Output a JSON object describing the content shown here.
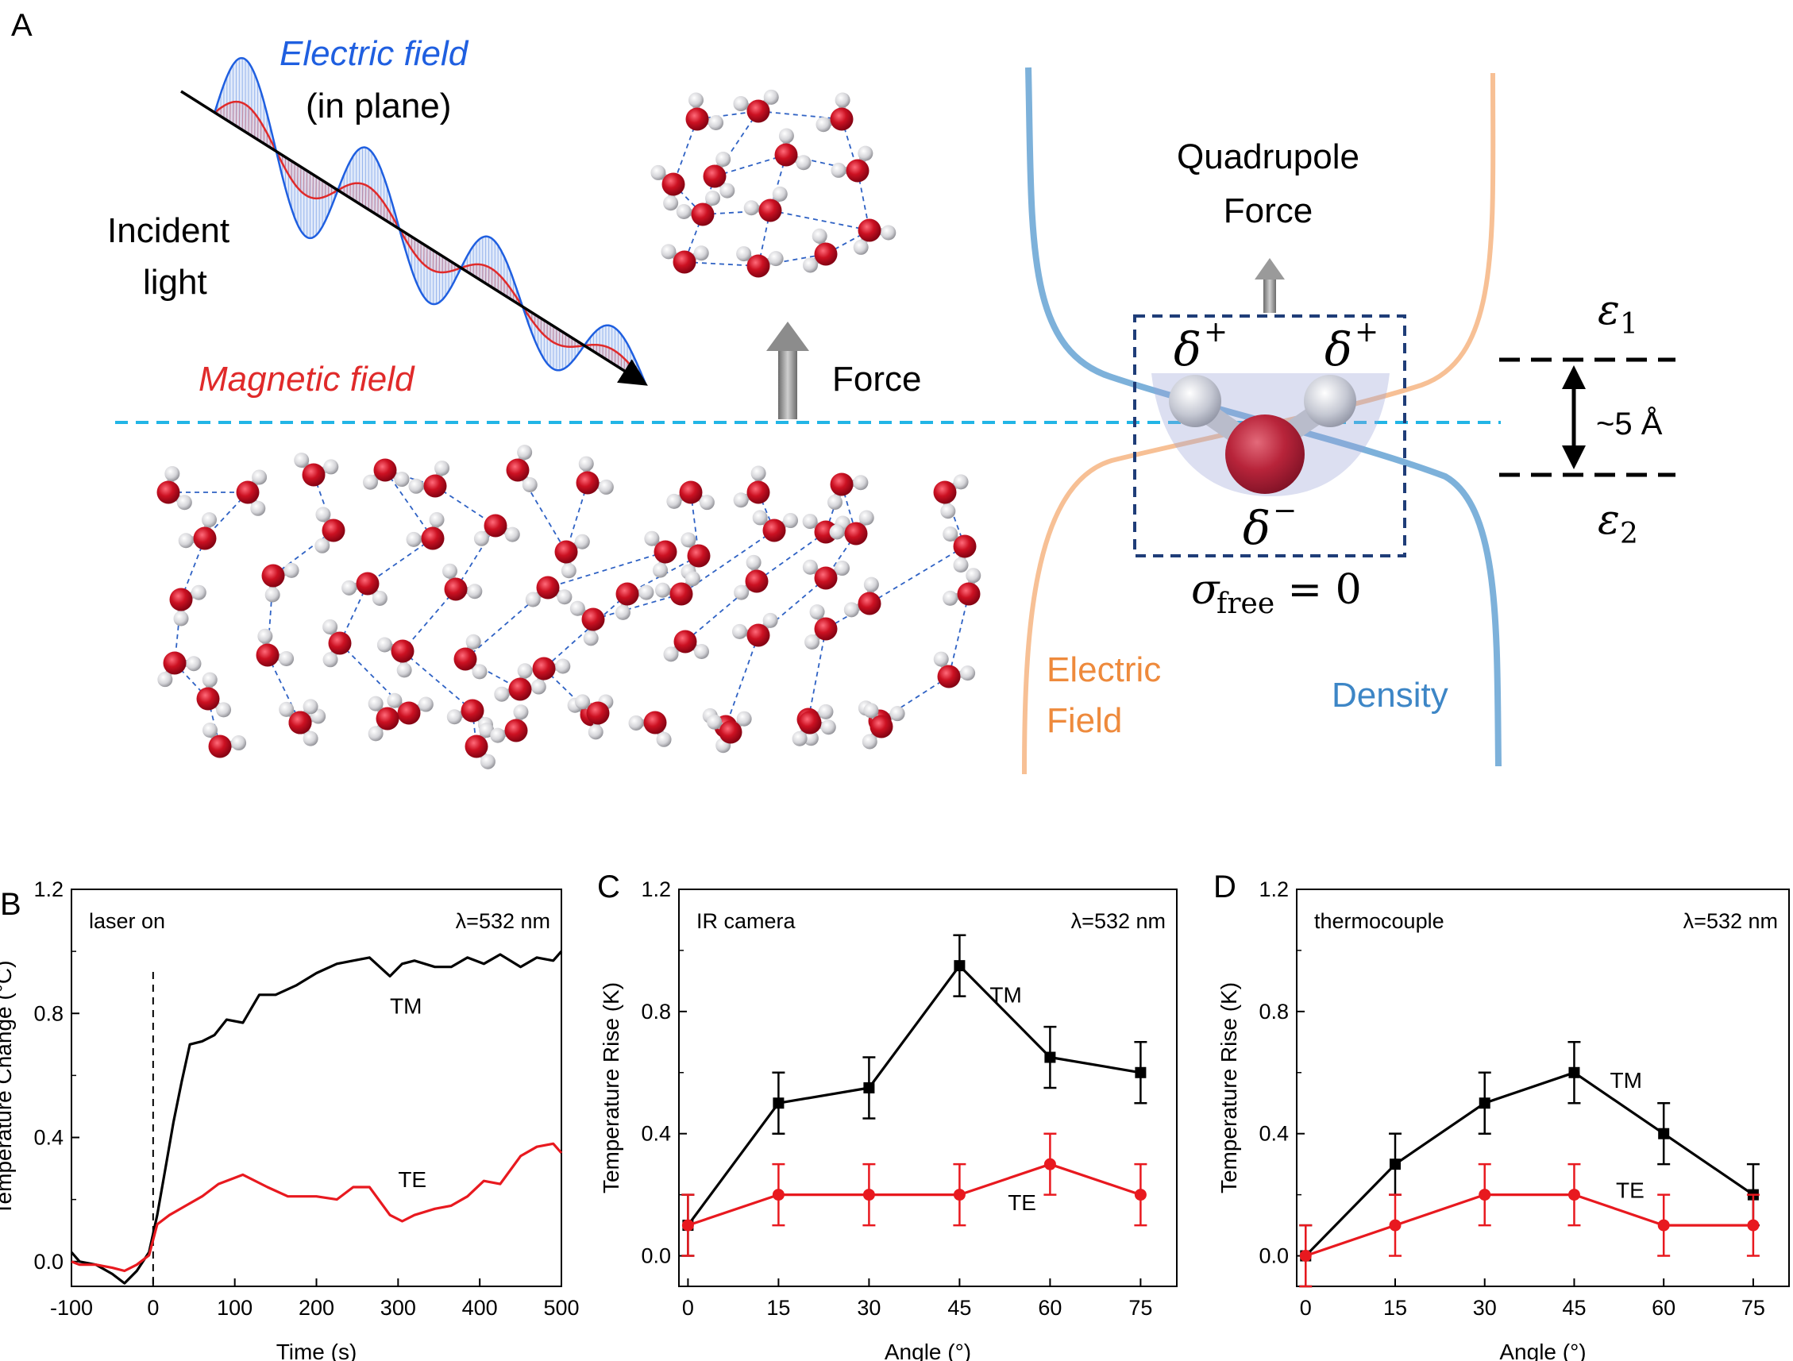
{
  "panel_a": {
    "label": "A",
    "electric_field": "Electric field",
    "in_plane": "(in plane)",
    "incident_line1": "Incident",
    "incident_line2": "light",
    "magnetic_field": "Magnetic field",
    "force": "Force",
    "quadrupole_line1": "Quadrupole",
    "quadrupole_line2": "Force",
    "delta_plus": "δ",
    "plus_sup": "+",
    "delta_minus": "δ",
    "minus_sup": "−",
    "sigma": "σ",
    "sigma_sub": "free",
    "sigma_eq": " = 0",
    "electric_field_curve_line1": "Electric",
    "electric_field_curve_line2": "Field",
    "density_curve": "Density",
    "eps": "ε",
    "eps1_sub": "1",
    "eps2_sub": "2",
    "distance": "~5 Å",
    "colors": {
      "electric": "#1f5fe0",
      "magnetic": "#e02a2a",
      "interface": "#22b5e6",
      "density": "#6fa8d6",
      "efield_curve": "#f6b98a",
      "efield_text": "#ee8a3c",
      "density_text": "#3d86c6",
      "box": "#1f3d78",
      "oxygen": "#c8102e",
      "hydrogen": "#d8d8dc"
    }
  },
  "chart_data": [
    {
      "panel": "B",
      "type": "line",
      "xlabel": "Time (s)",
      "ylabel": "Temperature Change (°C)",
      "xlim": [
        -100,
        500
      ],
      "ylim": [
        -0.08,
        1.2
      ],
      "xticks": [
        "-100",
        "0",
        "100",
        "200",
        "300",
        "400",
        "500"
      ],
      "yticks": [
        "0.0",
        "0.4",
        "0.8",
        "1.2"
      ],
      "annotations": {
        "top_left": "laser on",
        "top_right": "λ=532 nm"
      },
      "laser_on_x": 0,
      "series": [
        {
          "name": "TM",
          "color": "#000000",
          "x": [
            -100,
            -90,
            -70,
            -50,
            -35,
            -20,
            -5,
            5,
            15,
            25,
            35,
            45,
            60,
            75,
            90,
            110,
            130,
            150,
            175,
            200,
            225,
            245,
            265,
            290,
            305,
            320,
            345,
            365,
            385,
            405,
            425,
            450,
            470,
            490,
            500
          ],
          "y": [
            0.03,
            0.0,
            -0.01,
            -0.04,
            -0.07,
            -0.03,
            0.03,
            0.15,
            0.3,
            0.45,
            0.58,
            0.7,
            0.71,
            0.73,
            0.78,
            0.77,
            0.86,
            0.86,
            0.89,
            0.93,
            0.96,
            0.97,
            0.98,
            0.92,
            0.96,
            0.97,
            0.95,
            0.95,
            0.98,
            0.96,
            0.99,
            0.95,
            0.98,
            0.97,
            1.0
          ]
        },
        {
          "name": "TE",
          "color": "#e8191f",
          "x": [
            -100,
            -90,
            -70,
            -50,
            -35,
            -20,
            -5,
            5,
            20,
            40,
            60,
            80,
            110,
            140,
            165,
            200,
            225,
            245,
            265,
            290,
            305,
            320,
            345,
            365,
            385,
            405,
            425,
            450,
            470,
            490,
            500
          ],
          "y": [
            0.0,
            -0.01,
            -0.01,
            -0.02,
            -0.03,
            -0.01,
            0.02,
            0.12,
            0.15,
            0.18,
            0.21,
            0.25,
            0.28,
            0.24,
            0.21,
            0.21,
            0.2,
            0.24,
            0.24,
            0.15,
            0.13,
            0.15,
            0.17,
            0.18,
            0.21,
            0.26,
            0.25,
            0.34,
            0.37,
            0.38,
            0.35
          ]
        }
      ]
    },
    {
      "panel": "C",
      "type": "line",
      "xlabel": "Angle (°)",
      "ylabel": "Temperature Rise (K)",
      "xlim": [
        -1.5,
        81
      ],
      "ylim": [
        -0.1,
        1.2
      ],
      "xticks": [
        "0",
        "15",
        "30",
        "45",
        "60",
        "75"
      ],
      "yticks": [
        "0.0",
        "0.4",
        "0.8",
        "1.2"
      ],
      "annotations": {
        "top_left": "IR camera",
        "top_right": "λ=532 nm"
      },
      "series": [
        {
          "name": "TM",
          "color": "#000000",
          "marker": "square",
          "x": [
            0,
            15,
            30,
            45,
            60,
            75
          ],
          "y": [
            0.1,
            0.5,
            0.55,
            0.95,
            0.65,
            0.6
          ],
          "err": [
            0.1,
            0.1,
            0.1,
            0.1,
            0.1,
            0.1
          ]
        },
        {
          "name": "TE",
          "color": "#e8191f",
          "marker": "circle",
          "x": [
            0,
            15,
            30,
            45,
            60,
            75
          ],
          "y": [
            0.1,
            0.2,
            0.2,
            0.2,
            0.3,
            0.2
          ],
          "err": [
            0.1,
            0.1,
            0.1,
            0.1,
            0.1,
            0.1
          ]
        }
      ]
    },
    {
      "panel": "D",
      "type": "line",
      "xlabel": "Angle (°)",
      "ylabel": "Temperature Rise (K)",
      "xlim": [
        -1.5,
        81
      ],
      "ylim": [
        -0.1,
        1.2
      ],
      "xticks": [
        "0",
        "15",
        "30",
        "45",
        "60",
        "75"
      ],
      "yticks": [
        "0.0",
        "0.4",
        "0.8",
        "1.2"
      ],
      "annotations": {
        "top_left": "thermocouple",
        "top_right": "λ=532 nm"
      },
      "series": [
        {
          "name": "TM",
          "color": "#000000",
          "marker": "square",
          "x": [
            0,
            15,
            30,
            45,
            60,
            75
          ],
          "y": [
            0.0,
            0.3,
            0.5,
            0.6,
            0.4,
            0.2
          ],
          "err": [
            0.1,
            0.1,
            0.1,
            0.1,
            0.1,
            0.1
          ]
        },
        {
          "name": "TE",
          "color": "#e8191f",
          "marker": "circle",
          "x": [
            0,
            15,
            30,
            45,
            60,
            75
          ],
          "y": [
            0.0,
            0.1,
            0.2,
            0.2,
            0.1,
            0.1
          ],
          "err": [
            0.1,
            0.1,
            0.1,
            0.1,
            0.1,
            0.1
          ]
        }
      ]
    }
  ]
}
